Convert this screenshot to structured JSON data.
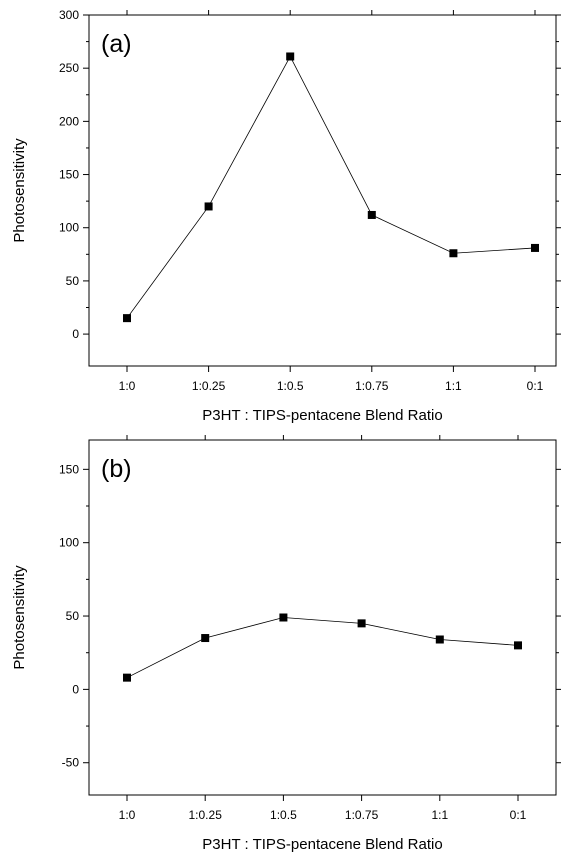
{
  "chart_data": [
    {
      "type": "line",
      "panel_label": "(a)",
      "xlabel": "P3HT : TIPS-pentacene Blend Ratio",
      "ylabel": "Photosensitivity",
      "categories": [
        "1:0",
        "1:0.25",
        "1:0.5",
        "1:0.75",
        "1:1",
        "0:1"
      ],
      "ylim": [
        -30,
        300
      ],
      "yticks": [
        0,
        50,
        100,
        150,
        200,
        250,
        300
      ],
      "grid": false,
      "series": [
        {
          "values": [
            15,
            120,
            261,
            112,
            76,
            81
          ],
          "marker": "square",
          "color": "#000000"
        }
      ]
    },
    {
      "type": "line",
      "panel_label": "(b)",
      "xlabel": "P3HT : TIPS-pentacene Blend Ratio",
      "ylabel": "Photosensitivity",
      "categories": [
        "1:0",
        "1:0.25",
        "1:0.5",
        "1:0.75",
        "1:1",
        "0:1"
      ],
      "ylim": [
        -72,
        170
      ],
      "yticks": [
        -50,
        0,
        50,
        100,
        150
      ],
      "grid": false,
      "series": [
        {
          "values": [
            8,
            35,
            49,
            45,
            34,
            30
          ],
          "marker": "square",
          "color": "#000000"
        }
      ]
    }
  ]
}
